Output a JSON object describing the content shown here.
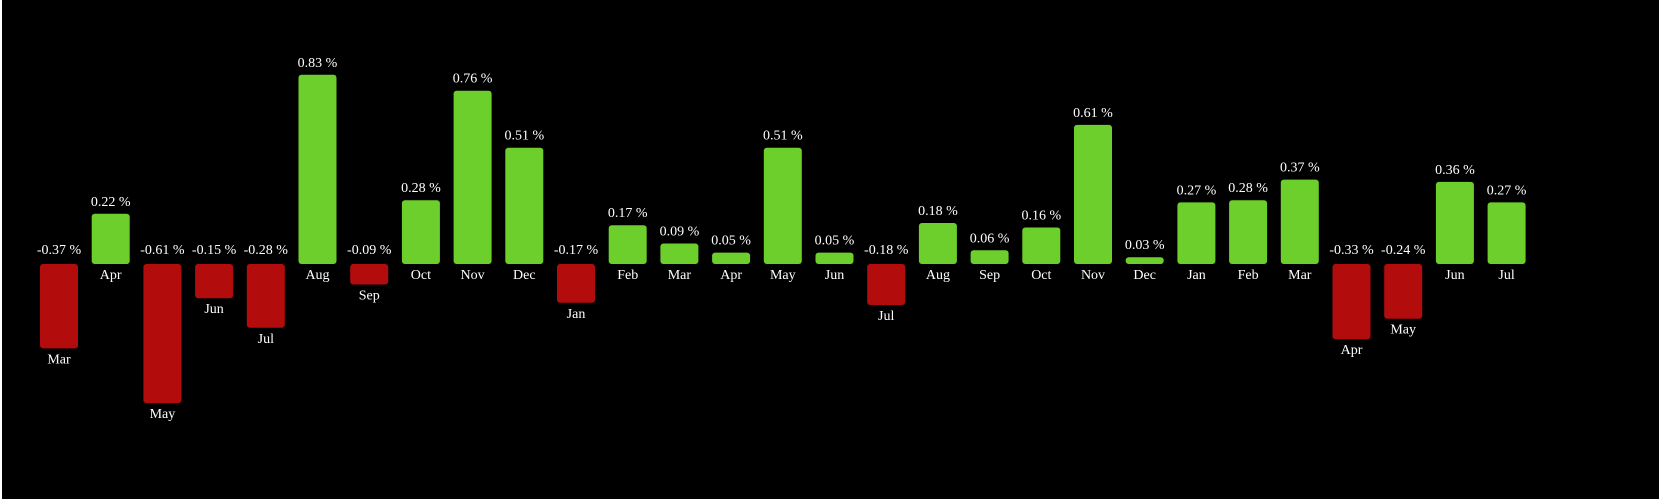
{
  "chart_data": {
    "type": "bar",
    "categories": [
      "Mar",
      "Apr",
      "May",
      "Jun",
      "Jul",
      "Aug",
      "Sep",
      "Oct",
      "Nov",
      "Dec",
      "Jan",
      "Feb",
      "Mar",
      "Apr",
      "May",
      "Jun",
      "Jul",
      "Aug",
      "Sep",
      "Oct",
      "Nov",
      "Dec",
      "Jan",
      "Feb",
      "Mar",
      "Apr",
      "May",
      "Jun",
      "Jul"
    ],
    "values": [
      -0.37,
      0.22,
      -0.61,
      -0.15,
      -0.28,
      0.83,
      -0.09,
      0.28,
      0.76,
      0.51,
      -0.17,
      0.17,
      0.09,
      0.05,
      0.51,
      0.05,
      -0.18,
      0.18,
      0.06,
      0.16,
      0.61,
      0.03,
      0.27,
      0.28,
      0.37,
      -0.33,
      -0.24,
      0.36,
      0.27
    ],
    "value_labels": [
      "-0.37 %",
      "0.22 %",
      "-0.61 %",
      "-0.15 %",
      "-0.28 %",
      "0.83 %",
      "-0.09 %",
      "0.28 %",
      "0.76 %",
      "0.51 %",
      "-0.17 %",
      "0.17 %",
      "0.09 %",
      "0.05 %",
      "0.51 %",
      "0.05 %",
      "-0.18 %",
      "0.18 %",
      "0.06 %",
      "0.16 %",
      "0.61 %",
      "0.03 %",
      "0.27 %",
      "0.28 %",
      "0.37 %",
      "-0.33 %",
      "-0.24 %",
      "0.36 %",
      "0.27 %"
    ],
    "title": "",
    "xlabel": "",
    "ylabel": "",
    "ylim": [
      -0.61,
      0.83
    ],
    "grid": false,
    "colors": {
      "positive": "#6dcf2c",
      "negative": "#b20c0c",
      "background": "#000000",
      "text": "#ffffff"
    }
  }
}
